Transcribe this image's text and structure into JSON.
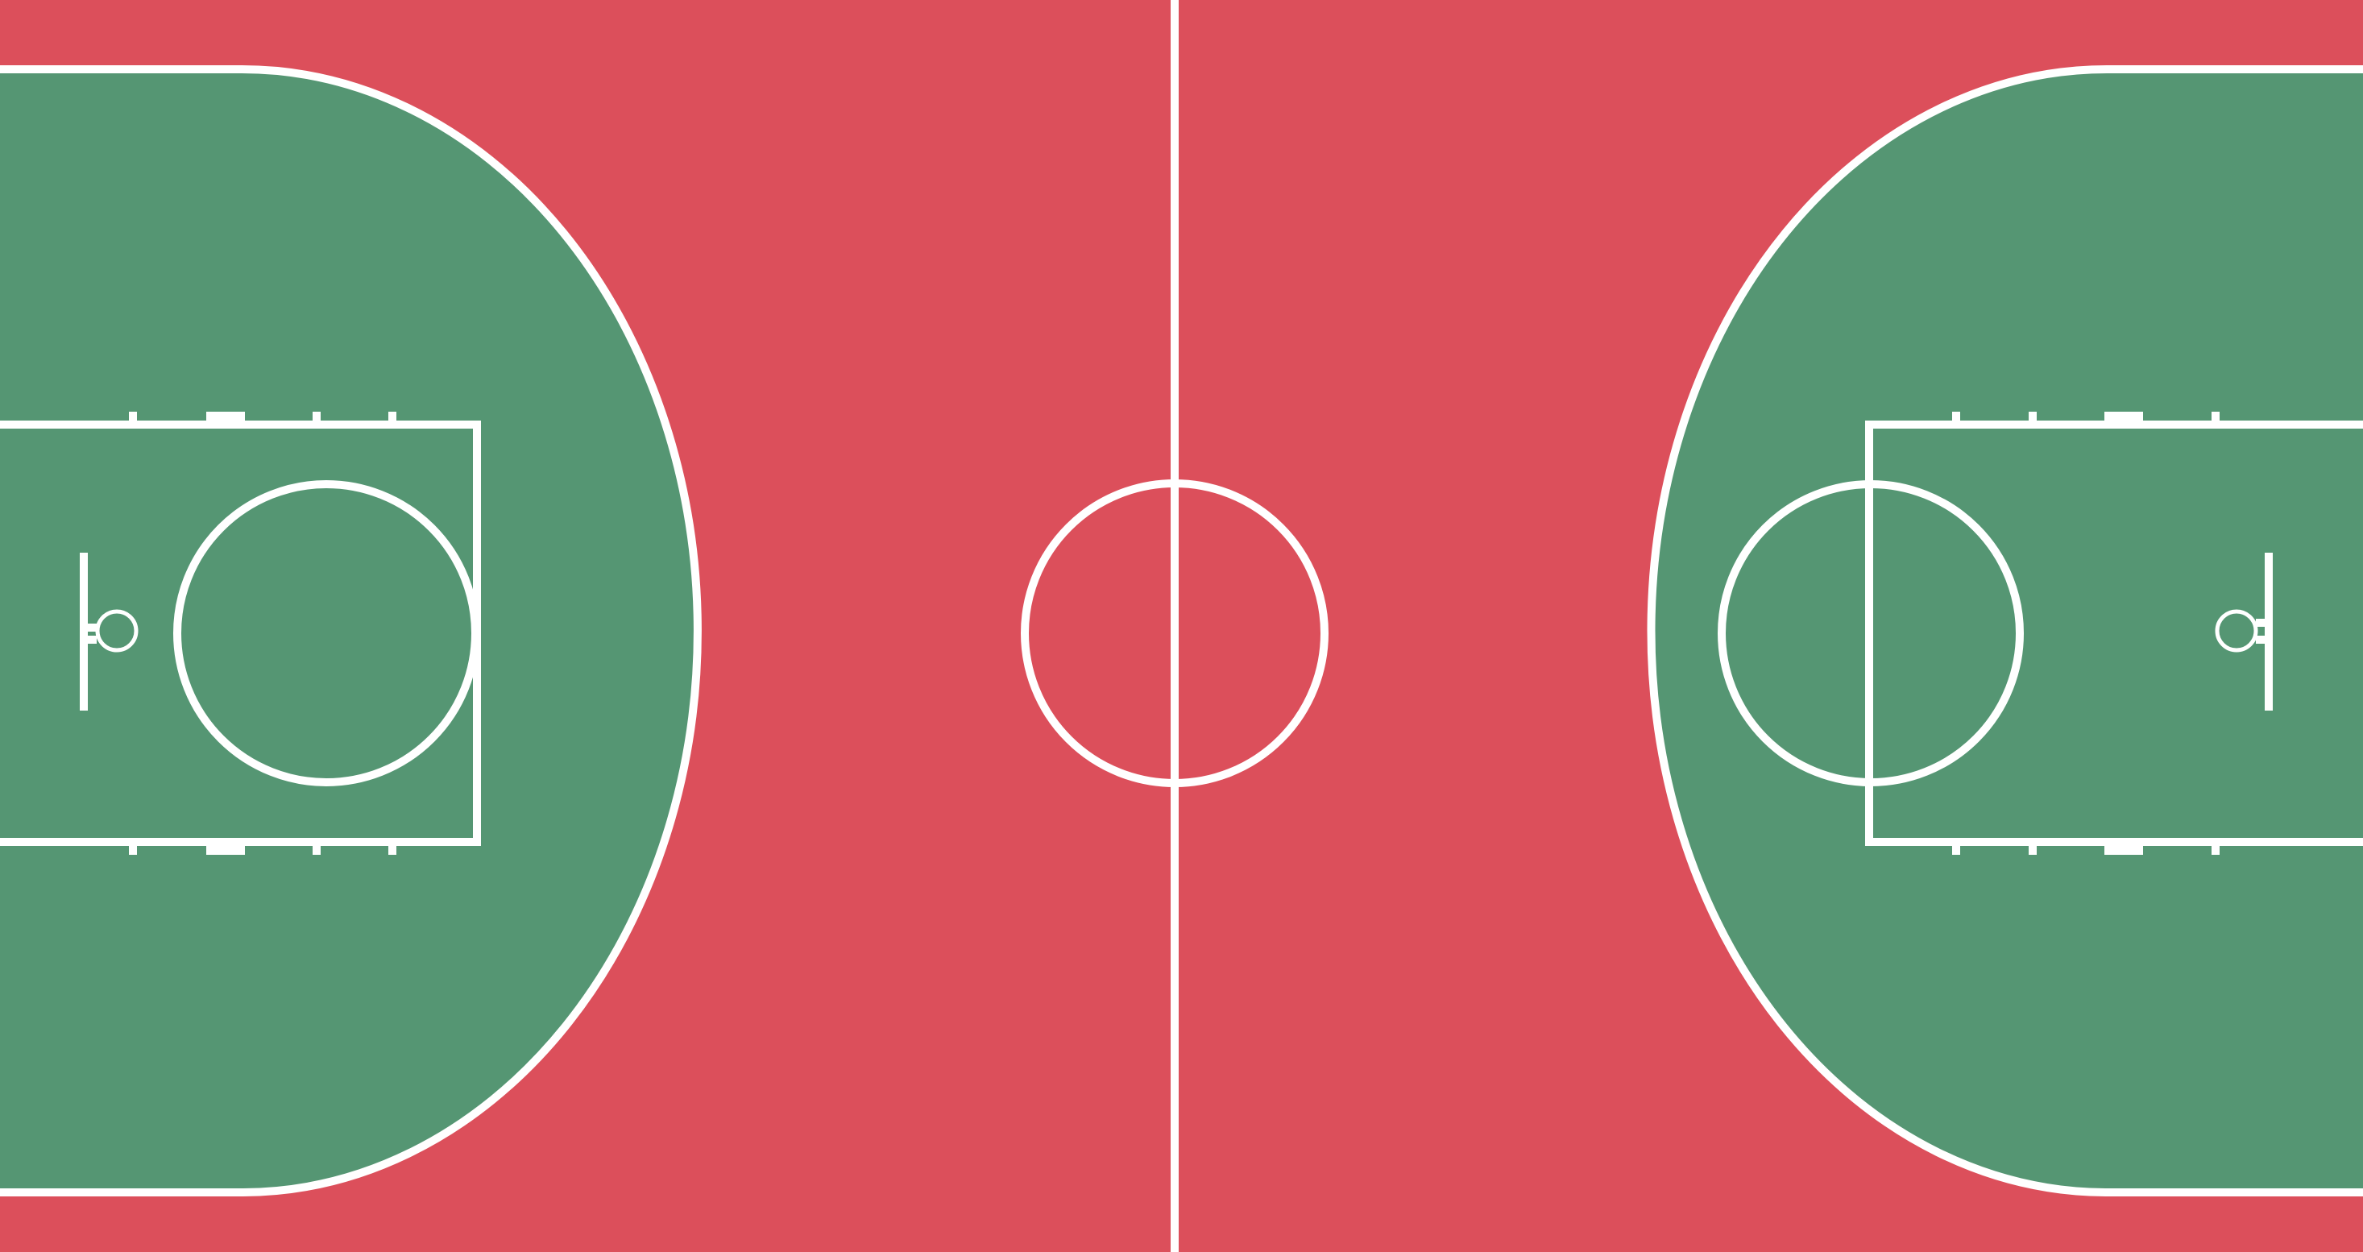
{
  "court": {
    "colors": {
      "background": "#dc4f5b",
      "three_point_area": "#559673",
      "lines": "#ffffff"
    }
  }
}
